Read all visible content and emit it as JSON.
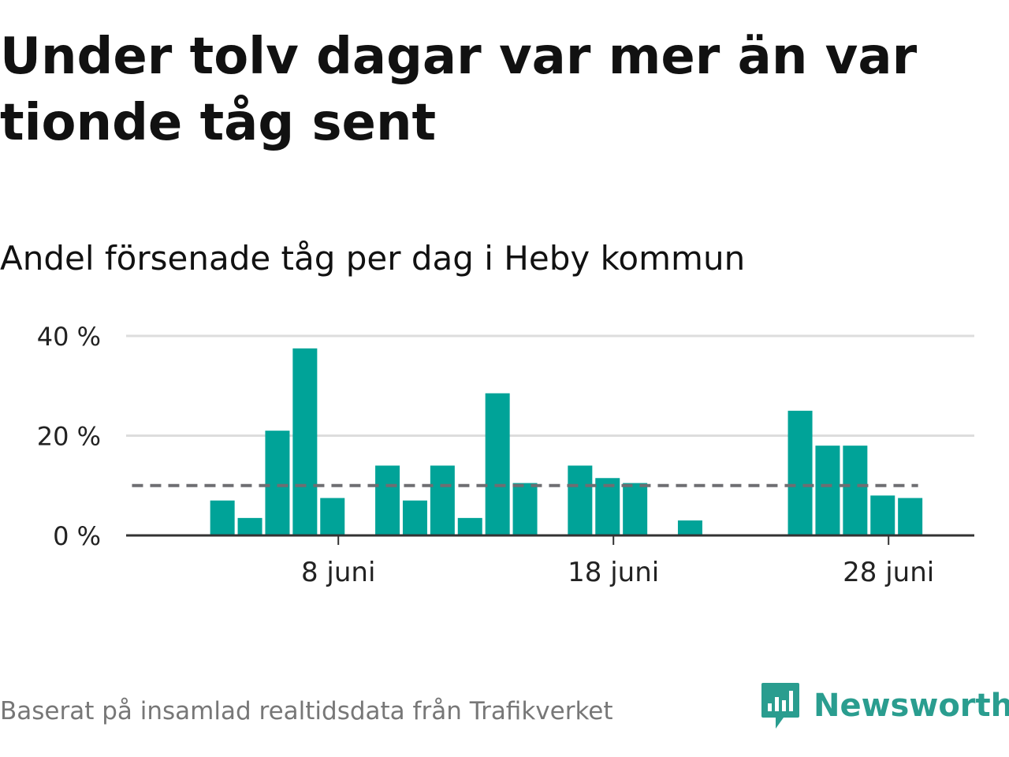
{
  "title": "Under tolv dagar var mer än var tionde tåg sent",
  "subtitle": "Andel försenade tåg per dag i Heby kommun",
  "footer": "Baserat på insamlad realtidsdata från Trafikverket",
  "brand": {
    "name": "Newsworthy",
    "icon": "newsworthy-logo-icon",
    "color": "#2a9d8f"
  },
  "colors": {
    "bar": "#00a398",
    "reference_line": "#6e6e72",
    "grid": "#dddddd",
    "axis": "#333333",
    "text": "#111111"
  },
  "chart_data": {
    "type": "bar",
    "title": "Andel försenade tåg per dag i Heby kommun",
    "xlabel": "",
    "ylabel": "",
    "x_axis": {
      "type": "date",
      "month": "juni",
      "range": [
        0,
        30
      ],
      "ticks": [
        8,
        18,
        28
      ],
      "tick_labels": [
        "8 juni",
        "18 juni",
        "28 juni"
      ]
    },
    "y_axis": {
      "range": [
        0,
        40
      ],
      "ticks": [
        0,
        20,
        40
      ],
      "tick_labels": [
        "0 %",
        "20 %",
        "40 %"
      ],
      "unit": "%"
    },
    "grid": true,
    "legend": "none",
    "reference_line": {
      "value": 10,
      "style": "dashed",
      "from_day": 1,
      "to_day": 29
    },
    "series": [
      {
        "days": [
          4,
          5,
          6,
          7,
          8,
          10,
          11,
          12,
          13,
          14,
          15,
          17,
          18,
          19,
          21,
          25,
          26,
          27,
          28,
          29
        ],
        "values": [
          7,
          3.5,
          21,
          37.5,
          7.5,
          14,
          7,
          14,
          3.5,
          28.5,
          10.5,
          14,
          11.5,
          10.5,
          3,
          25,
          18,
          18,
          8,
          7.5
        ]
      }
    ]
  }
}
